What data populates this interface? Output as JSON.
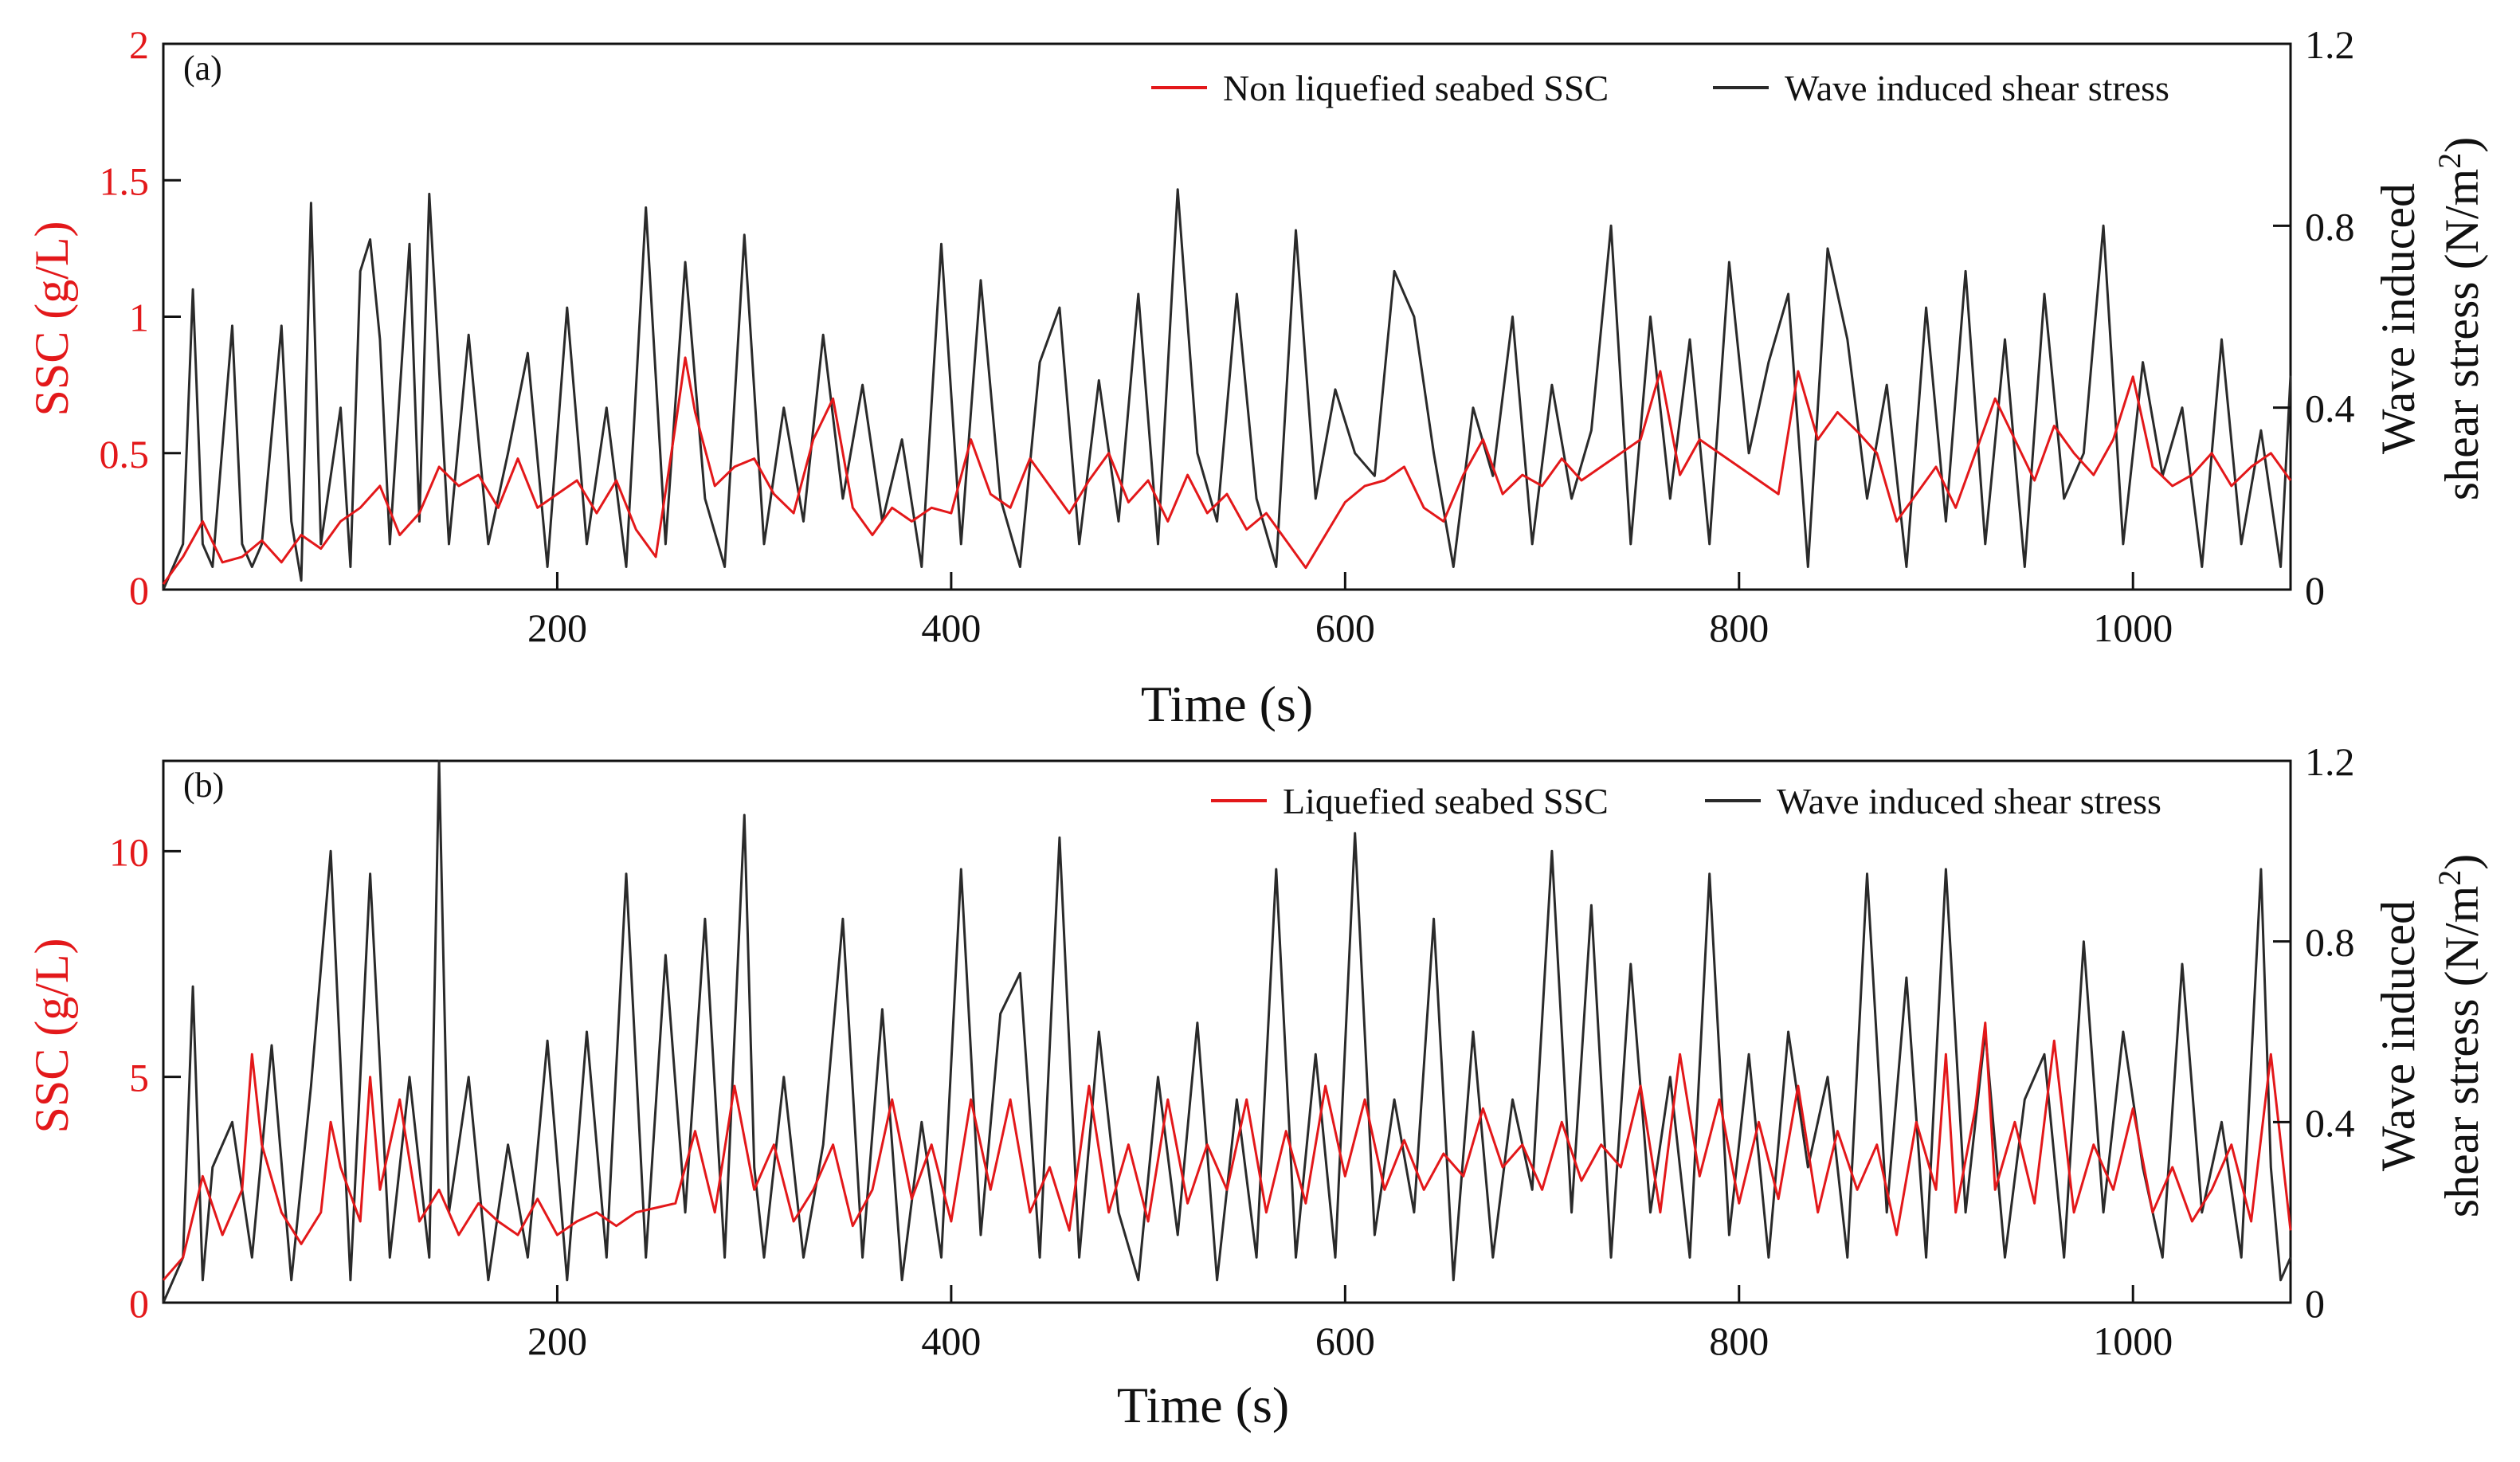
{
  "colors": {
    "ssc": "#e3181a",
    "stress": "#2a2a2a",
    "axis": "#111111"
  },
  "chart_data": [
    {
      "type": "line",
      "panel_label": "(a)",
      "xlabel": "Time (s)",
      "ylabel_left": "SSC (g/L)",
      "ylabel_right_line1": "Wave induced",
      "ylabel_right_line2_prefix": "shear stress (N/m",
      "ylabel_right_sup": "2",
      "ylabel_right_suffix": ")",
      "xlim": [
        0,
        1080
      ],
      "ylim_left": [
        0,
        2
      ],
      "ylim_right": [
        0,
        1.2
      ],
      "xticks": [
        200,
        400,
        600,
        800,
        1000
      ],
      "yticks_left": [
        0,
        0.5,
        1,
        1.5,
        2
      ],
      "yticks_left_labels": [
        "0",
        "0.5",
        "1",
        "1.5",
        "2"
      ],
      "yticks_right": [
        0,
        0.4,
        0.8,
        1.2
      ],
      "yticks_right_labels": [
        "0",
        "0.4",
        "0.8",
        "1.2"
      ],
      "legend_position": "top-right",
      "series": [
        {
          "name": "Non liquefied seabed SSC",
          "axis": "left",
          "color": "#e3181a",
          "x": [
            0,
            10,
            20,
            30,
            40,
            50,
            60,
            70,
            80,
            90,
            100,
            110,
            120,
            130,
            140,
            150,
            160,
            170,
            180,
            190,
            200,
            210,
            220,
            230,
            240,
            250,
            260,
            265,
            270,
            280,
            290,
            300,
            310,
            320,
            330,
            340,
            350,
            360,
            370,
            380,
            390,
            400,
            410,
            420,
            430,
            440,
            450,
            460,
            470,
            480,
            490,
            500,
            510,
            520,
            530,
            540,
            550,
            560,
            570,
            580,
            590,
            600,
            610,
            620,
            630,
            640,
            650,
            660,
            670,
            680,
            690,
            700,
            710,
            720,
            730,
            740,
            750,
            760,
            770,
            780,
            790,
            800,
            810,
            820,
            830,
            840,
            850,
            860,
            870,
            880,
            890,
            900,
            910,
            920,
            930,
            940,
            950,
            960,
            970,
            980,
            990,
            1000,
            1010,
            1020,
            1030,
            1040,
            1050,
            1060,
            1070,
            1080
          ],
          "values": [
            0.02,
            0.12,
            0.25,
            0.1,
            0.12,
            0.18,
            0.1,
            0.2,
            0.15,
            0.25,
            0.3,
            0.38,
            0.2,
            0.28,
            0.45,
            0.38,
            0.42,
            0.3,
            0.48,
            0.3,
            0.35,
            0.4,
            0.28,
            0.4,
            0.22,
            0.12,
            0.6,
            0.85,
            0.65,
            0.38,
            0.45,
            0.48,
            0.35,
            0.28,
            0.55,
            0.7,
            0.3,
            0.2,
            0.3,
            0.25,
            0.3,
            0.28,
            0.55,
            0.35,
            0.3,
            0.48,
            0.38,
            0.28,
            0.4,
            0.5,
            0.32,
            0.4,
            0.25,
            0.42,
            0.28,
            0.35,
            0.22,
            0.28,
            0.18,
            0.08,
            0.2,
            0.32,
            0.38,
            0.4,
            0.45,
            0.3,
            0.25,
            0.42,
            0.55,
            0.35,
            0.42,
            0.38,
            0.48,
            0.4,
            0.45,
            0.5,
            0.55,
            0.8,
            0.42,
            0.55,
            0.5,
            0.45,
            0.4,
            0.35,
            0.8,
            0.55,
            0.65,
            0.58,
            0.5,
            0.25,
            0.35,
            0.45,
            0.3,
            0.5,
            0.7,
            0.55,
            0.4,
            0.6,
            0.5,
            0.42,
            0.55,
            0.78,
            0.45,
            0.38,
            0.42,
            0.5,
            0.38,
            0.45,
            0.5,
            0.4
          ]
        },
        {
          "name": "Wave induced shear stress",
          "axis": "right",
          "color": "#2a2a2a",
          "x": [
            0,
            10,
            15,
            20,
            25,
            35,
            40,
            45,
            50,
            60,
            65,
            70,
            75,
            80,
            90,
            95,
            100,
            105,
            110,
            115,
            125,
            130,
            135,
            145,
            155,
            165,
            175,
            185,
            195,
            205,
            215,
            225,
            235,
            245,
            255,
            265,
            275,
            285,
            295,
            305,
            315,
            325,
            335,
            345,
            355,
            365,
            375,
            385,
            395,
            405,
            415,
            425,
            435,
            445,
            455,
            465,
            475,
            485,
            495,
            505,
            515,
            525,
            535,
            545,
            555,
            565,
            575,
            585,
            595,
            605,
            615,
            625,
            635,
            645,
            655,
            665,
            675,
            685,
            695,
            705,
            715,
            725,
            735,
            745,
            755,
            765,
            775,
            785,
            795,
            805,
            815,
            825,
            835,
            845,
            855,
            865,
            875,
            885,
            895,
            905,
            915,
            925,
            935,
            945,
            955,
            965,
            975,
            985,
            995,
            1005,
            1015,
            1025,
            1035,
            1045,
            1055,
            1065,
            1075,
            1080
          ],
          "values": [
            0.0,
            0.1,
            0.66,
            0.1,
            0.05,
            0.58,
            0.1,
            0.05,
            0.1,
            0.58,
            0.15,
            0.02,
            0.85,
            0.1,
            0.4,
            0.05,
            0.7,
            0.77,
            0.55,
            0.1,
            0.76,
            0.15,
            0.87,
            0.1,
            0.56,
            0.1,
            0.3,
            0.52,
            0.05,
            0.62,
            0.1,
            0.4,
            0.05,
            0.84,
            0.1,
            0.72,
            0.2,
            0.05,
            0.78,
            0.1,
            0.4,
            0.15,
            0.56,
            0.2,
            0.45,
            0.15,
            0.33,
            0.05,
            0.76,
            0.1,
            0.68,
            0.2,
            0.05,
            0.5,
            0.62,
            0.1,
            0.46,
            0.15,
            0.65,
            0.1,
            0.88,
            0.3,
            0.15,
            0.65,
            0.2,
            0.05,
            0.79,
            0.2,
            0.44,
            0.3,
            0.25,
            0.7,
            0.6,
            0.3,
            0.05,
            0.4,
            0.25,
            0.6,
            0.1,
            0.45,
            0.2,
            0.35,
            0.8,
            0.1,
            0.6,
            0.2,
            0.55,
            0.1,
            0.72,
            0.3,
            0.5,
            0.65,
            0.05,
            0.75,
            0.55,
            0.2,
            0.45,
            0.05,
            0.62,
            0.15,
            0.7,
            0.1,
            0.55,
            0.05,
            0.65,
            0.2,
            0.3,
            0.8,
            0.1,
            0.5,
            0.25,
            0.4,
            0.05,
            0.55,
            0.1,
            0.35,
            0.05,
            0.47
          ]
        }
      ]
    },
    {
      "type": "line",
      "panel_label": "(b)",
      "xlabel": "Time (s)",
      "ylabel_left": "SSC (g/L)",
      "ylabel_right_line1": "Wave induced",
      "ylabel_right_line2_prefix": "shear stress (N/m",
      "ylabel_right_sup": "2",
      "ylabel_right_suffix": ")",
      "xlim": [
        0,
        1080
      ],
      "ylim_left": [
        0,
        12
      ],
      "ylim_right": [
        0,
        1.2
      ],
      "xticks": [
        200,
        400,
        600,
        800,
        1000
      ],
      "yticks_left": [
        0,
        5,
        10
      ],
      "yticks_left_labels": [
        "0",
        "5",
        "10"
      ],
      "yticks_right": [
        0,
        0.4,
        0.8,
        1.2
      ],
      "yticks_right_labels": [
        "0",
        "0.4",
        "0.8",
        "1.2"
      ],
      "legend_position": "top-right",
      "series": [
        {
          "name": "Liquefied seabed SSC",
          "axis": "left",
          "color": "#e3181a",
          "x": [
            0,
            10,
            20,
            30,
            40,
            45,
            50,
            60,
            70,
            80,
            85,
            90,
            100,
            105,
            110,
            120,
            130,
            140,
            150,
            160,
            170,
            180,
            190,
            200,
            210,
            220,
            230,
            240,
            250,
            260,
            270,
            280,
            290,
            300,
            310,
            320,
            330,
            340,
            350,
            360,
            370,
            380,
            390,
            400,
            410,
            420,
            430,
            440,
            450,
            460,
            470,
            480,
            490,
            500,
            510,
            520,
            530,
            540,
            550,
            560,
            570,
            580,
            590,
            600,
            610,
            620,
            630,
            640,
            650,
            660,
            670,
            680,
            690,
            700,
            710,
            720,
            730,
            740,
            750,
            760,
            770,
            780,
            790,
            800,
            810,
            820,
            830,
            840,
            850,
            860,
            870,
            880,
            890,
            900,
            905,
            910,
            920,
            925,
            930,
            940,
            950,
            960,
            970,
            980,
            990,
            1000,
            1010,
            1020,
            1030,
            1040,
            1050,
            1060,
            1070,
            1080
          ],
          "values": [
            0.5,
            1.0,
            2.8,
            1.5,
            2.5,
            5.5,
            3.5,
            2.0,
            1.3,
            2.0,
            4.0,
            3.0,
            1.8,
            5.0,
            2.5,
            4.5,
            1.8,
            2.5,
            1.5,
            2.2,
            1.8,
            1.5,
            2.3,
            1.5,
            1.8,
            2.0,
            1.7,
            2.0,
            2.1,
            2.2,
            3.8,
            2.0,
            4.8,
            2.5,
            3.5,
            1.8,
            2.5,
            3.5,
            1.7,
            2.5,
            4.5,
            2.3,
            3.5,
            1.8,
            4.5,
            2.5,
            4.5,
            2.0,
            3.0,
            1.6,
            4.8,
            2.0,
            3.5,
            1.8,
            4.5,
            2.2,
            3.5,
            2.5,
            4.5,
            2.0,
            3.8,
            2.2,
            4.8,
            2.8,
            4.5,
            2.5,
            3.6,
            2.5,
            3.3,
            2.8,
            4.3,
            3.0,
            3.5,
            2.5,
            4.0,
            2.7,
            3.5,
            3.0,
            4.8,
            2.0,
            5.5,
            2.8,
            4.5,
            2.2,
            4.0,
            2.3,
            4.8,
            2.0,
            3.8,
            2.5,
            3.5,
            1.5,
            4.0,
            2.5,
            5.5,
            2.0,
            4.3,
            6.2,
            2.5,
            4.0,
            2.2,
            5.8,
            2.0,
            3.5,
            2.5,
            4.3,
            2.0,
            3.0,
            1.8,
            2.5,
            3.5,
            1.8,
            5.5,
            1.6
          ]
        },
        {
          "name": "Wave induced shear stress",
          "axis": "right",
          "color": "#2a2a2a",
          "x": [
            0,
            10,
            15,
            20,
            25,
            35,
            45,
            55,
            65,
            75,
            85,
            95,
            105,
            115,
            125,
            135,
            140,
            145,
            155,
            165,
            175,
            185,
            195,
            205,
            215,
            225,
            235,
            245,
            255,
            265,
            275,
            285,
            295,
            300,
            305,
            315,
            325,
            335,
            345,
            355,
            365,
            375,
            385,
            395,
            405,
            415,
            425,
            435,
            445,
            455,
            465,
            475,
            485,
            495,
            505,
            515,
            525,
            535,
            545,
            555,
            565,
            575,
            585,
            595,
            605,
            615,
            625,
            635,
            645,
            655,
            665,
            675,
            685,
            695,
            705,
            715,
            725,
            735,
            745,
            755,
            765,
            775,
            785,
            795,
            805,
            815,
            825,
            835,
            845,
            855,
            865,
            875,
            885,
            895,
            905,
            915,
            925,
            935,
            945,
            955,
            965,
            975,
            985,
            995,
            1005,
            1015,
            1025,
            1035,
            1045,
            1055,
            1065,
            1070,
            1075,
            1080
          ],
          "values": [
            0.0,
            0.1,
            0.7,
            0.05,
            0.3,
            0.4,
            0.1,
            0.57,
            0.05,
            0.48,
            1.0,
            0.05,
            0.95,
            0.1,
            0.5,
            0.1,
            1.2,
            0.2,
            0.5,
            0.05,
            0.35,
            0.1,
            0.58,
            0.05,
            0.6,
            0.1,
            0.95,
            0.1,
            0.77,
            0.2,
            0.85,
            0.1,
            1.08,
            0.3,
            0.1,
            0.5,
            0.1,
            0.35,
            0.85,
            0.1,
            0.65,
            0.05,
            0.4,
            0.1,
            0.96,
            0.15,
            0.64,
            0.73,
            0.1,
            1.03,
            0.1,
            0.6,
            0.2,
            0.05,
            0.5,
            0.15,
            0.62,
            0.05,
            0.45,
            0.1,
            0.96,
            0.1,
            0.55,
            0.1,
            1.04,
            0.15,
            0.45,
            0.2,
            0.85,
            0.05,
            0.6,
            0.1,
            0.45,
            0.25,
            1.0,
            0.2,
            0.88,
            0.1,
            0.75,
            0.2,
            0.5,
            0.1,
            0.95,
            0.15,
            0.55,
            0.1,
            0.6,
            0.3,
            0.5,
            0.1,
            0.95,
            0.2,
            0.72,
            0.1,
            0.96,
            0.2,
            0.6,
            0.1,
            0.45,
            0.55,
            0.1,
            0.8,
            0.2,
            0.6,
            0.3,
            0.1,
            0.75,
            0.2,
            0.4,
            0.1,
            0.96,
            0.3,
            0.05,
            0.1
          ]
        }
      ]
    }
  ]
}
